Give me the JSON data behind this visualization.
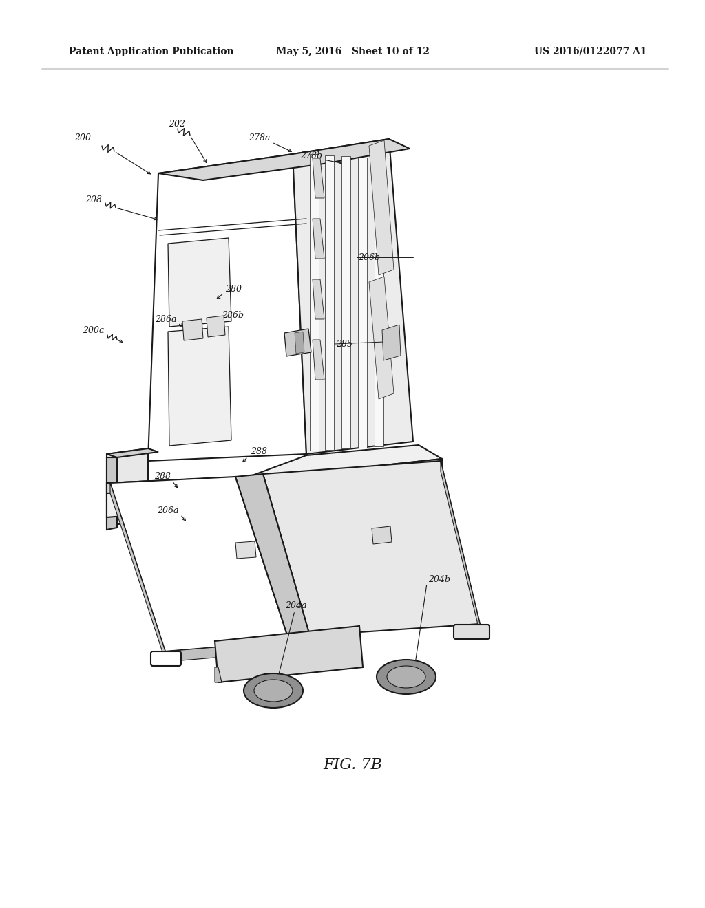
{
  "background_color": "#ffffff",
  "header_left": "Patent Application Publication",
  "header_center": "May 5, 2016   Sheet 10 of 12",
  "header_right": "US 2016/0122077 A1",
  "figure_label": "FIG. 7B",
  "line_color": "#1a1a1a",
  "lw": 1.5,
  "tlw": 0.9
}
